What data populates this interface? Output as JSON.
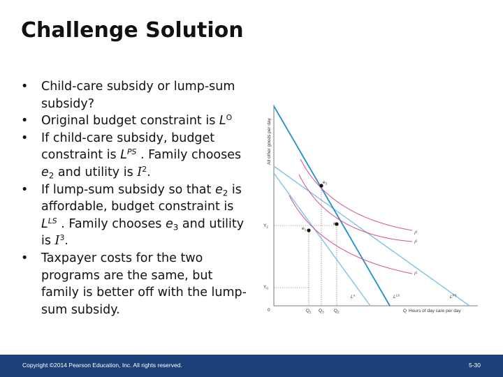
{
  "title": "Challenge Solution",
  "bullets": {
    "b1": {
      "text": "Child-care subsidy or lump-sum subsidy?"
    },
    "b2": {
      "pre": "Original budget constraint is ",
      "sym": "L",
      "sup": "O"
    },
    "b3": {
      "pre": "If child-care subsidy, budget constraint is ",
      "sym": "L",
      "sup": "PS",
      "mid": " . Family chooses ",
      "e": "e",
      "esub": "2",
      "post": " and utility is ",
      "u": "I",
      "usup": "2",
      "end": "."
    },
    "b4": {
      "pre": "If lump-sum subsidy so that ",
      "e": "e",
      "esub": "2",
      "mid": " is affordable, budget constraint is ",
      "sym": "L",
      "sup": "LS",
      "mid2": " . Family chooses ",
      "e3": "e",
      "e3sub": "3",
      "post": " and utility is ",
      "u": "I",
      "usup": "3",
      "end": "."
    },
    "b5": {
      "text": "Taxpayer costs for the two programs are the same, but family is better off with the lump-sum subsidy."
    }
  },
  "graph": {
    "y_axis_label": "All other goods per day",
    "x_axis_label": "Hours of day care per day",
    "origin": "0",
    "y_ticks": {
      "y2": "Y",
      "y2_sub": "2",
      "y0": "Y",
      "y0_sub": "0"
    },
    "x_ticks": {
      "q1": "Q",
      "q1_sub": "1",
      "q3": "Q",
      "q3_sub": "3",
      "q2": "Q",
      "q2_sub": "2"
    },
    "x_axis_q": "Q",
    "points": {
      "e1": "e",
      "e1_sub": "1",
      "e2": "e",
      "e2_sub": "2",
      "e3": "e",
      "e3_sub": "3"
    },
    "budget_lines": {
      "lo": "L",
      "lo_sup": "o",
      "lls": "L",
      "lls_sup": "LS",
      "lps": "L",
      "lps_sup": "PS"
    },
    "curves": {
      "i1": "I",
      "i1_sup": "1",
      "i2": "I",
      "i2_sup": "2",
      "i3": "I",
      "i3_sup": "3"
    },
    "colors": {
      "blue_line": "#1f8fd0",
      "light_blue_line": "#7cc3e4",
      "indifference": "#d9508a",
      "footer": "#1d4078"
    }
  },
  "footer": {
    "copyright": "Copyright ©2014 Pearson Education, Inc. All rights reserved.",
    "page": "5-30"
  }
}
